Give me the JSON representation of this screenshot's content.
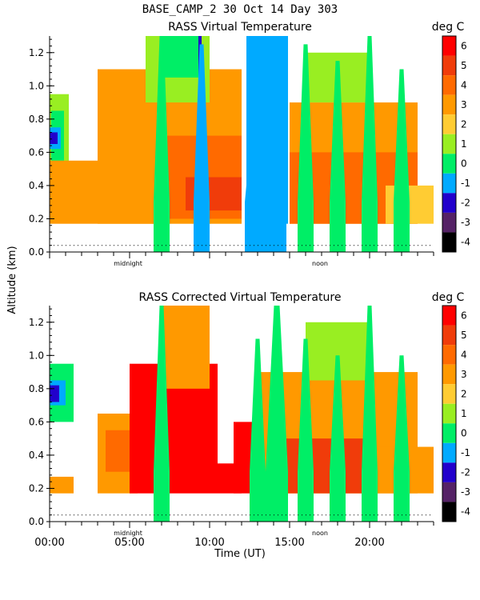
{
  "figure": {
    "header": "BASE_CAMP_2   30 Oct 14 Day 303",
    "y_axis_label": "Altitude (km)",
    "x_axis_label": "Time (UT)"
  },
  "chart_data": [
    {
      "type": "heatmap",
      "title": "RASS Virtual Temperature",
      "colorbar_unit": "deg C",
      "xlabel": "Time (UT)",
      "ylabel": "Altitude (km)",
      "xlim": [
        0,
        24
      ],
      "ylim": [
        0,
        1.3
      ],
      "x_tick_labels": [],
      "x_annotations": [
        "midnight",
        "noon"
      ],
      "y_tick_labels": [
        "0.0",
        "0.2",
        "0.4",
        "0.6",
        "0.8",
        "1.0",
        "1.2"
      ],
      "y_ticks": [
        0.0,
        0.2,
        0.4,
        0.6,
        0.8,
        1.0,
        1.2
      ],
      "colorbar_levels": [
        "6",
        "5",
        "4",
        "3",
        "2",
        "1",
        "0",
        "-1",
        "-2",
        "-3",
        "-4"
      ],
      "colorbar_colors": [
        "#ff0000",
        "#f03c0a",
        "#ff6a00",
        "#ff9900",
        "#ffcc33",
        "#99ee22",
        "#00ee66",
        "#00aaff",
        "#2200cc",
        "#552266",
        "#000000"
      ],
      "dotted_reference_altitude_km": 0.04,
      "regions": [
        {
          "t0": 0.0,
          "t1": 1.2,
          "z0": 0.2,
          "z1": 0.95,
          "value": 1
        },
        {
          "t0": 0.1,
          "t1": 0.9,
          "z0": 0.55,
          "z1": 0.85,
          "value": 0
        },
        {
          "t0": 0.0,
          "t1": 0.7,
          "z0": 0.62,
          "z1": 0.75,
          "value": -1
        },
        {
          "t0": 0.0,
          "t1": 0.5,
          "z0": 0.65,
          "z1": 0.72,
          "value": -2
        },
        {
          "t0": 0.0,
          "t1": 7.0,
          "z0": 0.17,
          "z1": 0.55,
          "value": 3
        },
        {
          "t0": 3.0,
          "t1": 12.0,
          "z0": 0.17,
          "z1": 1.1,
          "value": 3
        },
        {
          "t0": 7.0,
          "t1": 12.0,
          "z0": 0.2,
          "z1": 0.7,
          "value": 4
        },
        {
          "t0": 8.5,
          "t1": 12.0,
          "z0": 0.25,
          "z1": 0.45,
          "value": 5
        },
        {
          "t0": 15.0,
          "t1": 23.0,
          "z0": 0.17,
          "z1": 0.9,
          "value": 3
        },
        {
          "t0": 15.0,
          "t1": 23.0,
          "z0": 0.17,
          "z1": 0.6,
          "value": 4
        },
        {
          "t0": 21.0,
          "t1": 24.0,
          "z0": 0.17,
          "z1": 0.4,
          "value": 2
        },
        {
          "t0": 6.0,
          "t1": 10.0,
          "z0": 0.9,
          "z1": 1.3,
          "value": 1
        },
        {
          "t0": 7.0,
          "t1": 9.5,
          "z0": 1.05,
          "z1": 1.3,
          "value": 0
        },
        {
          "t0": 12.3,
          "t1": 14.9,
          "z0": 0.17,
          "z1": 1.3,
          "value": -1
        },
        {
          "t0": 16.0,
          "t1": 20.0,
          "z0": 0.9,
          "z1": 1.2,
          "value": 1
        },
        {
          "t0": 9.3,
          "t1": 9.5,
          "z0": 1.05,
          "z1": 1.3,
          "value": -2
        }
      ],
      "spikes": [
        {
          "t": 7.0,
          "half_width": 0.5,
          "value": 0,
          "z_top": 1.3
        },
        {
          "t": 9.5,
          "half_width": 0.5,
          "value": -1,
          "z_top": 1.25
        },
        {
          "t": 13.5,
          "half_width": 1.3,
          "value": -1,
          "z_top": 1.3
        },
        {
          "t": 16.0,
          "half_width": 0.5,
          "value": 0,
          "z_top": 1.25
        },
        {
          "t": 18.0,
          "half_width": 0.5,
          "value": 0,
          "z_top": 1.15
        },
        {
          "t": 20.0,
          "half_width": 0.5,
          "value": 0,
          "z_top": 1.3
        },
        {
          "t": 22.0,
          "half_width": 0.5,
          "value": 0,
          "z_top": 1.1
        }
      ]
    },
    {
      "type": "heatmap",
      "title": "RASS Corrected Virtual Temperature",
      "colorbar_unit": "deg C",
      "xlabel": "Time (UT)",
      "ylabel": "Altitude (km)",
      "xlim": [
        0,
        24
      ],
      "ylim": [
        0,
        1.3
      ],
      "x_tick_labels": [
        "00:00",
        "05:00",
        "10:00",
        "15:00",
        "20:00"
      ],
      "x_ticks": [
        0,
        5,
        10,
        15,
        20
      ],
      "x_annotations": [
        "midnight",
        "noon"
      ],
      "y_tick_labels": [
        "0.0",
        "0.2",
        "0.4",
        "0.6",
        "0.8",
        "1.0",
        "1.2"
      ],
      "y_ticks": [
        0.0,
        0.2,
        0.4,
        0.6,
        0.8,
        1.0,
        1.2
      ],
      "colorbar_levels": [
        "6",
        "5",
        "4",
        "3",
        "2",
        "1",
        "0",
        "-1",
        "-2",
        "-3",
        "-4"
      ],
      "colorbar_colors": [
        "#ff0000",
        "#f03c0a",
        "#ff6a00",
        "#ff9900",
        "#ffcc33",
        "#99ee22",
        "#00ee66",
        "#00aaff",
        "#2200cc",
        "#552266",
        "#000000"
      ],
      "dotted_reference_altitude_km": 0.04,
      "regions": [
        {
          "t0": 0.0,
          "t1": 1.5,
          "z0": 0.6,
          "z1": 0.95,
          "value": 0
        },
        {
          "t0": 0.0,
          "t1": 1.0,
          "z0": 0.7,
          "z1": 0.85,
          "value": -1
        },
        {
          "t0": 0.0,
          "t1": 0.6,
          "z0": 0.72,
          "z1": 0.82,
          "value": -2
        },
        {
          "t0": 0.0,
          "t1": 1.5,
          "z0": 0.17,
          "z1": 0.27,
          "value": 3
        },
        {
          "t0": 3.0,
          "t1": 5.5,
          "z0": 0.17,
          "z1": 0.65,
          "value": 3
        },
        {
          "t0": 3.5,
          "t1": 5.0,
          "z0": 0.3,
          "z1": 0.55,
          "value": 4
        },
        {
          "t0": 5.0,
          "t1": 10.5,
          "z0": 0.17,
          "z1": 0.95,
          "value": 6
        },
        {
          "t0": 7.0,
          "t1": 10.0,
          "z0": 0.8,
          "z1": 1.3,
          "value": 3
        },
        {
          "t0": 10.5,
          "t1": 12.0,
          "z0": 0.17,
          "z1": 0.35,
          "value": 6
        },
        {
          "t0": 11.5,
          "t1": 14.5,
          "z0": 0.17,
          "z1": 0.6,
          "value": 6
        },
        {
          "t0": 13.0,
          "t1": 23.0,
          "z0": 0.17,
          "z1": 0.9,
          "value": 3
        },
        {
          "t0": 14.5,
          "t1": 20.0,
          "z0": 0.17,
          "z1": 0.5,
          "value": 5
        },
        {
          "t0": 16.0,
          "t1": 20.0,
          "z0": 0.85,
          "z1": 1.2,
          "value": 1
        },
        {
          "t0": 20.5,
          "t1": 24.0,
          "z0": 0.17,
          "z1": 0.45,
          "value": 3
        }
      ],
      "spikes": [
        {
          "t": 7.0,
          "half_width": 0.5,
          "value": 0,
          "z_top": 1.3
        },
        {
          "t": 13.0,
          "half_width": 0.5,
          "value": 0,
          "z_top": 1.1
        },
        {
          "t": 14.2,
          "half_width": 0.7,
          "value": 0,
          "z_top": 1.3
        },
        {
          "t": 16.0,
          "half_width": 0.5,
          "value": 0,
          "z_top": 1.1
        },
        {
          "t": 18.0,
          "half_width": 0.5,
          "value": 0,
          "z_top": 1.0
        },
        {
          "t": 20.0,
          "half_width": 0.5,
          "value": 0,
          "z_top": 1.3
        },
        {
          "t": 22.0,
          "half_width": 0.5,
          "value": 0,
          "z_top": 1.0
        }
      ]
    }
  ]
}
